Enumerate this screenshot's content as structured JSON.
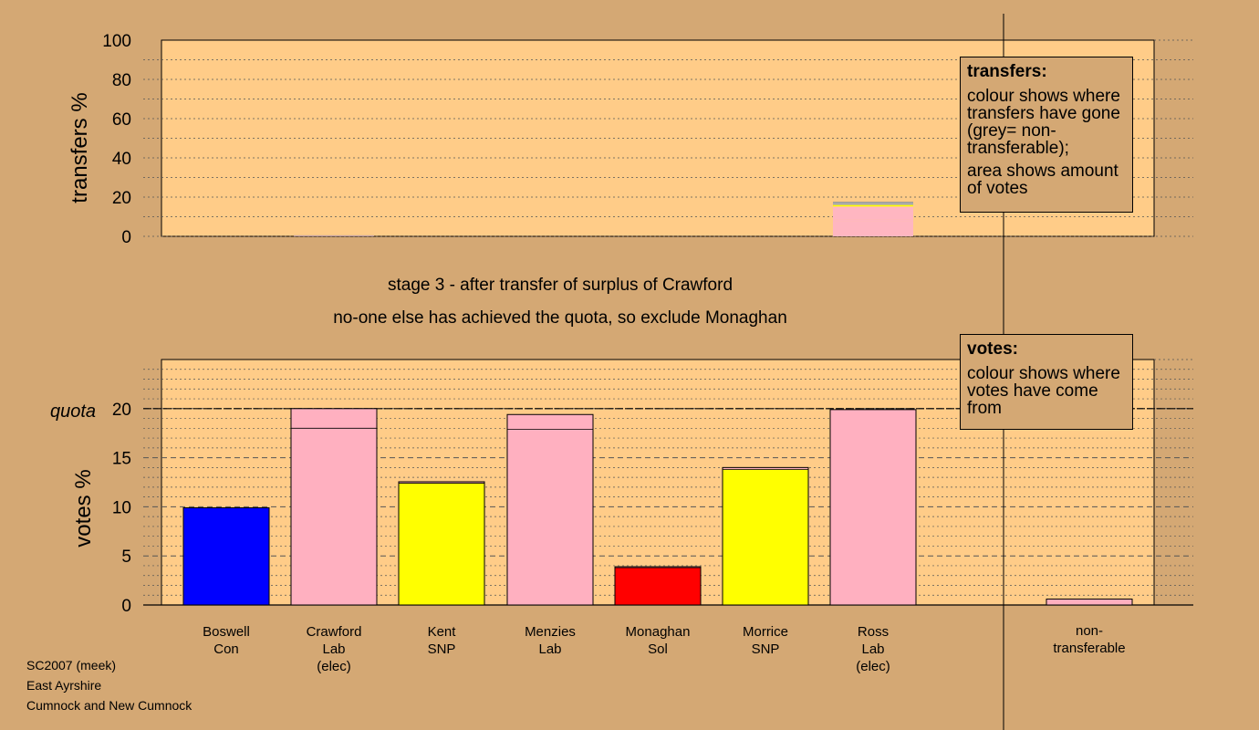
{
  "chart_data": [
    {
      "type": "bar",
      "name": "transfers",
      "ylabel": "transfers %",
      "ylim": [
        0,
        100
      ],
      "yticks": [
        0,
        20,
        40,
        60,
        80,
        100
      ],
      "categories": [
        "Boswell",
        "Crawford",
        "Kent",
        "Menzies",
        "Monaghan",
        "Morrice",
        "Ross",
        "",
        "non-transferable"
      ],
      "stacks": [
        [],
        [
          {
            "value": 0.4,
            "color": "#ffb6c1"
          }
        ],
        [],
        [],
        [],
        [],
        [
          {
            "value": 7.5,
            "color": "#ffb6c1"
          },
          {
            "value": 1.2,
            "color": "#ffb6c1"
          },
          {
            "value": 6.5,
            "color": "#ffb6c1"
          },
          {
            "value": 0.8,
            "color": "#ffff00"
          },
          {
            "value": 1.5,
            "color": "#aaaaaa"
          }
        ],
        [],
        []
      ]
    },
    {
      "type": "bar",
      "name": "votes",
      "ylabel": "votes %",
      "ylim": [
        0,
        25
      ],
      "yticks": [
        0,
        5,
        10,
        15,
        20
      ],
      "quota": 20,
      "quota_label": "quota",
      "categories": [
        "Boswell",
        "Crawford",
        "Kent",
        "Menzies",
        "Monaghan",
        "Morrice",
        "Ross",
        "",
        "non-transferable"
      ],
      "stacks": [
        [
          {
            "value": 9.9,
            "color": "#0000ff"
          }
        ],
        [
          {
            "value": 18.0,
            "color": "#ffb0c0"
          },
          {
            "value": 2.0,
            "color": "#ffb0c0"
          }
        ],
        [
          {
            "value": 12.4,
            "color": "#ffff00"
          },
          {
            "value": 0.15,
            "color": "#ffb0c0"
          }
        ],
        [
          {
            "value": 17.9,
            "color": "#ffb0c0"
          },
          {
            "value": 1.5,
            "color": "#ffb0c0"
          }
        ],
        [
          {
            "value": 3.8,
            "color": "#ff0000"
          },
          {
            "value": 0.1,
            "color": "#ffb0c0"
          }
        ],
        [
          {
            "value": 13.8,
            "color": "#ffff00"
          },
          {
            "value": 0.2,
            "color": "#ffb0c0"
          }
        ],
        [
          {
            "value": 19.9,
            "color": "#ffb0c0"
          }
        ],
        [],
        [
          {
            "value": 0.6,
            "color": "#ffb0c0"
          }
        ]
      ]
    }
  ],
  "candidates": [
    {
      "name": "Boswell",
      "party": "Con",
      "note": ""
    },
    {
      "name": "Crawford",
      "party": "Lab",
      "note": "(elec)"
    },
    {
      "name": "Kent",
      "party": "SNP",
      "note": ""
    },
    {
      "name": "Menzies",
      "party": "Lab",
      "note": ""
    },
    {
      "name": "Monaghan",
      "party": "Sol",
      "note": ""
    },
    {
      "name": "Morrice",
      "party": "SNP",
      "note": ""
    },
    {
      "name": "Ross",
      "party": "Lab",
      "note": "(elec)"
    },
    {
      "name": "",
      "party": "",
      "note": ""
    },
    {
      "name": "non-",
      "party": "transferable",
      "note": ""
    }
  ],
  "stage_line1": "stage 3 - after transfer of surplus of Crawford",
  "stage_line2": "no-one else has achieved the quota, so exclude Monaghan",
  "legend_transfers": {
    "title": "transfers:",
    "p1": "colour shows where transfers have gone (grey= non-transferable);",
    "p2": "area shows amount of votes"
  },
  "legend_votes": {
    "title": "votes:",
    "p1": "colour shows where votes have come from"
  },
  "footer": {
    "line1": "SC2007 (meek)",
    "line2": "East Ayrshire",
    "line3": "Cumnock and New Cumnock"
  },
  "colors": {
    "background": "#d4a874",
    "panel": "#ffcc88"
  }
}
